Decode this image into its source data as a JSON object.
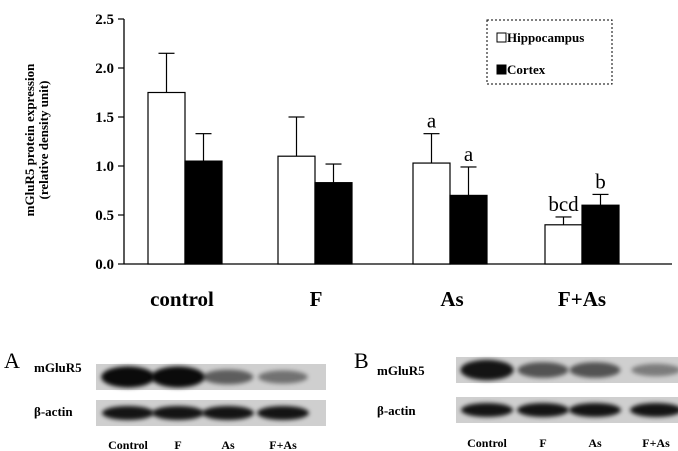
{
  "chart_data": {
    "type": "bar",
    "title": "",
    "ylabel_lines": [
      "mGluR5 protein expression",
      "(relative density unit)"
    ],
    "xlabel": "",
    "categories": [
      "control",
      "F",
      "As",
      "F+As"
    ],
    "ylim": [
      0,
      2.5
    ],
    "yticks": [
      "0.0",
      "0.5",
      "1.0",
      "1.5",
      "2.0",
      "2.5"
    ],
    "ytick_values": [
      0,
      0.5,
      1.0,
      1.5,
      2.0,
      2.5
    ],
    "legend_position": "top-right",
    "grid": false,
    "series": [
      {
        "name": "Hippocampus",
        "color": "#ffffff",
        "values": [
          1.75,
          1.1,
          1.03,
          0.4
        ],
        "errors": [
          0.4,
          0.4,
          0.3,
          0.08
        ],
        "labels": [
          "",
          "",
          "a",
          "bcd"
        ]
      },
      {
        "name": "Cortex",
        "color": "#000000",
        "values": [
          1.05,
          0.83,
          0.7,
          0.6
        ],
        "errors": [
          0.28,
          0.19,
          0.29,
          0.11
        ],
        "labels": [
          "",
          "",
          "a",
          "b"
        ]
      }
    ]
  },
  "blots": [
    {
      "letter": "A",
      "rows": [
        "mGluR5",
        "β-actin"
      ],
      "lanes": [
        "Control",
        "F",
        "As",
        "F+As"
      ],
      "band_intensity": [
        [
          0.95,
          0.95,
          0.55,
          0.45
        ],
        [
          0.9,
          0.9,
          0.9,
          0.9
        ]
      ]
    },
    {
      "letter": "B",
      "rows": [
        "mGluR5",
        "β-actin"
      ],
      "lanes": [
        "Control",
        "F",
        "As",
        "F+As"
      ],
      "band_intensity": [
        [
          0.9,
          0.6,
          0.6,
          0.4
        ],
        [
          0.9,
          0.9,
          0.9,
          0.9
        ]
      ]
    }
  ]
}
